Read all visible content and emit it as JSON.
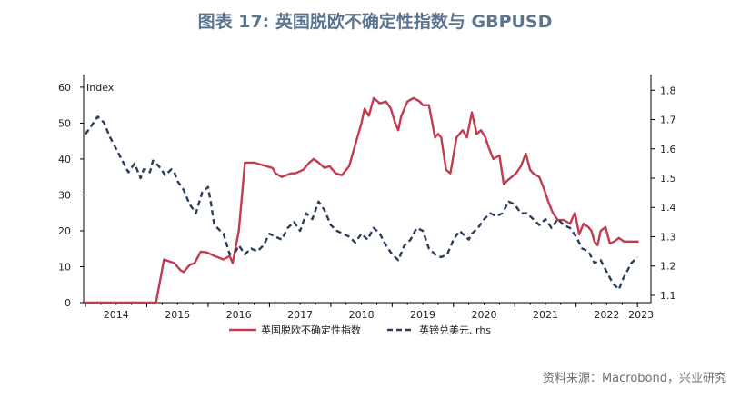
{
  "header": {
    "title": "图表 17: 英国脱欧不确定性指数与 GBPUSD"
  },
  "footer": {
    "source": "资料来源：Macrobond，兴业研究"
  },
  "colors": {
    "series_left": "#c23b51",
    "series_right": "#2b3d5c",
    "axis": "#000000",
    "title": "#5b7590"
  },
  "chart_data": {
    "type": "line",
    "title": "图表 17: 英国脱欧不确定性指数与 GBPUSD",
    "ylabel_left": "Index",
    "ylim_left": [
      0,
      62
    ],
    "ylim_right": [
      1.075,
      1.835
    ],
    "xlim": [
      2013.97,
      2023.22
    ],
    "y_ticks_left": [
      "0",
      "10",
      "20",
      "30",
      "40",
      "50",
      "60"
    ],
    "y_ticks_right": [
      "1.1",
      "1.2",
      "1.3",
      "1.4",
      "1.5",
      "1.6",
      "1.7",
      "1.8"
    ],
    "x_ticks": [
      "2014",
      "2015",
      "2016",
      "2017",
      "2018",
      "2019",
      "2020",
      "2021",
      "2022",
      "2023"
    ],
    "legend": {
      "placement": "bottom",
      "entries": [
        "英国脱欧不确定性指数",
        "英镑兑美元, rhs"
      ]
    },
    "grid": false,
    "series": [
      {
        "name": "英国脱欧不确定性指数",
        "axis": "left",
        "style": "solid",
        "x": [
          2014.0,
          2015.15,
          2015.28,
          2015.45,
          2015.55,
          2015.6,
          2015.7,
          2015.78,
          2015.88,
          2015.98,
          2016.1,
          2016.18,
          2016.25,
          2016.3,
          2016.35,
          2016.4,
          2016.5,
          2016.6,
          2016.75,
          2016.85,
          2016.95,
          2017.05,
          2017.1,
          2017.2,
          2017.35,
          2017.42,
          2017.55,
          2017.65,
          2017.72,
          2017.8,
          2017.9,
          2017.98,
          2018.08,
          2018.18,
          2018.3,
          2018.4,
          2018.5,
          2018.55,
          2018.62,
          2018.7,
          2018.8,
          2018.9,
          2018.98,
          2019.05,
          2019.1,
          2019.15,
          2019.25,
          2019.35,
          2019.45,
          2019.5,
          2019.6,
          2019.7,
          2019.75,
          2019.8,
          2019.88,
          2019.95,
          2020.05,
          2020.1,
          2020.15,
          2020.22,
          2020.3,
          2020.38,
          2020.45,
          2020.52,
          2020.58,
          2020.65,
          2020.75,
          2020.82,
          2020.88,
          2020.95,
          2021.02,
          2021.1,
          2021.18,
          2021.25,
          2021.3,
          2021.4,
          2021.47,
          2021.55,
          2021.62,
          2021.7,
          2021.8,
          2021.9,
          2021.98,
          2022.05,
          2022.12,
          2022.2,
          2022.25,
          2022.3,
          2022.35,
          2022.4,
          2022.48,
          2022.55,
          2022.62,
          2022.7,
          2022.78,
          2022.85,
          2022.95,
          2023.02
        ],
        "values": [
          0,
          0,
          12,
          11,
          9,
          8.5,
          10.5,
          11,
          14.2,
          14,
          13,
          12.5,
          12,
          12.5,
          13,
          11,
          20,
          39,
          39,
          38.5,
          38,
          37.5,
          36,
          35,
          36,
          36,
          37,
          39,
          40,
          39,
          37.5,
          38,
          36,
          35.5,
          38,
          44,
          50,
          54,
          52,
          57,
          55.5,
          56,
          54,
          50,
          48,
          52,
          56,
          57,
          56,
          55,
          55,
          46,
          47,
          46,
          37,
          36,
          46,
          47,
          48,
          46,
          53,
          47,
          48,
          46,
          43,
          40,
          41,
          33,
          34,
          35,
          36,
          38,
          41.5,
          37,
          36,
          35,
          32,
          28,
          25,
          23,
          23,
          22,
          25,
          19,
          22,
          21,
          20,
          17,
          16,
          20,
          21,
          16.5,
          17,
          18,
          17,
          17,
          17,
          17
        ]
      },
      {
        "name": "英镑兑美元, rhs",
        "axis": "right",
        "style": "dashed",
        "x": [
          2014.0,
          2014.1,
          2014.2,
          2014.3,
          2014.4,
          2014.5,
          2014.6,
          2014.7,
          2014.8,
          2014.9,
          2014.95,
          2015.0,
          2015.05,
          2015.1,
          2015.2,
          2015.3,
          2015.4,
          2015.45,
          2015.5,
          2015.6,
          2015.7,
          2015.8,
          2015.9,
          2016.0,
          2016.05,
          2016.1,
          2016.15,
          2016.25,
          2016.35,
          2016.45,
          2016.5,
          2016.6,
          2016.7,
          2016.8,
          2016.9,
          2017.0,
          2017.1,
          2017.2,
          2017.3,
          2017.4,
          2017.5,
          2017.6,
          2017.7,
          2017.8,
          2017.9,
          2018.0,
          2018.1,
          2018.2,
          2018.3,
          2018.4,
          2018.5,
          2018.6,
          2018.7,
          2018.8,
          2018.9,
          2019.0,
          2019.1,
          2019.2,
          2019.3,
          2019.4,
          2019.5,
          2019.6,
          2019.7,
          2019.8,
          2019.9,
          2020.0,
          2020.1,
          2020.2,
          2020.25,
          2020.3,
          2020.4,
          2020.5,
          2020.6,
          2020.7,
          2020.8,
          2020.9,
          2021.0,
          2021.1,
          2021.2,
          2021.3,
          2021.4,
          2021.5,
          2021.6,
          2021.7,
          2021.8,
          2021.9,
          2022.0,
          2022.1,
          2022.2,
          2022.3,
          2022.4,
          2022.5,
          2022.6,
          2022.7,
          2022.75,
          2022.8,
          2022.9,
          2023.0
        ],
        "values": [
          1.65,
          1.68,
          1.71,
          1.69,
          1.64,
          1.6,
          1.56,
          1.52,
          1.55,
          1.5,
          1.53,
          1.53,
          1.52,
          1.56,
          1.54,
          1.51,
          1.53,
          1.52,
          1.49,
          1.46,
          1.41,
          1.38,
          1.45,
          1.47,
          1.41,
          1.34,
          1.33,
          1.31,
          1.24,
          1.25,
          1.27,
          1.24,
          1.26,
          1.25,
          1.27,
          1.31,
          1.3,
          1.29,
          1.33,
          1.35,
          1.32,
          1.38,
          1.36,
          1.42,
          1.39,
          1.34,
          1.32,
          1.31,
          1.3,
          1.28,
          1.31,
          1.29,
          1.33,
          1.31,
          1.27,
          1.24,
          1.22,
          1.27,
          1.29,
          1.33,
          1.32,
          1.26,
          1.24,
          1.23,
          1.24,
          1.29,
          1.32,
          1.3,
          1.29,
          1.31,
          1.33,
          1.36,
          1.38,
          1.37,
          1.38,
          1.42,
          1.41,
          1.38,
          1.38,
          1.36,
          1.34,
          1.36,
          1.33,
          1.36,
          1.34,
          1.33,
          1.3,
          1.26,
          1.25,
          1.21,
          1.22,
          1.18,
          1.14,
          1.12,
          1.15,
          1.17,
          1.21,
          1.23
        ]
      }
    ]
  }
}
